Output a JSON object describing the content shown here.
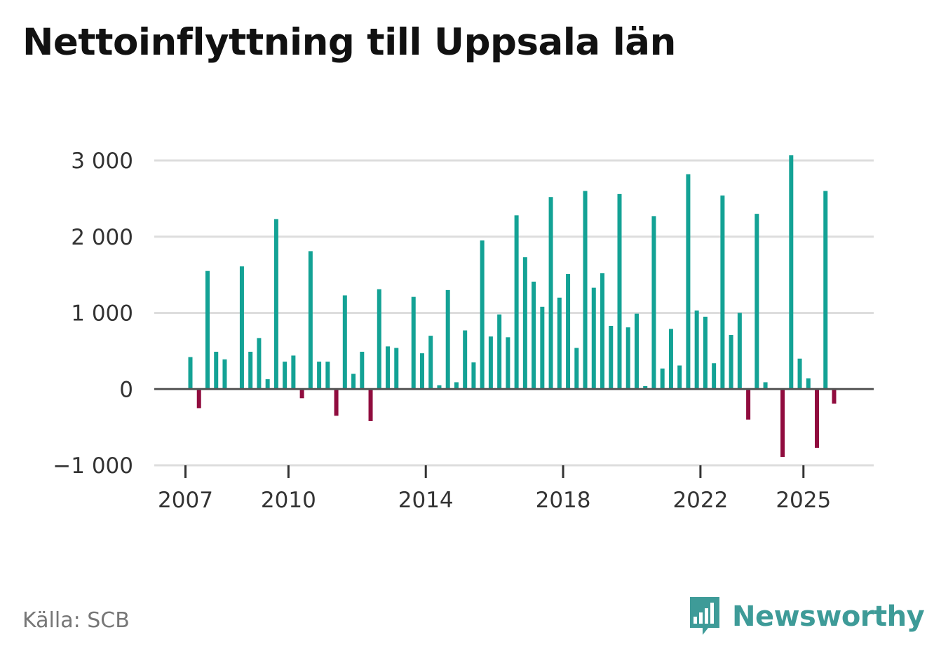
{
  "title": "Nettoinflyttning till Uppsala län",
  "source": "Källa: SCB",
  "brand": {
    "name": "Newsworthy",
    "color": "#3e9b98"
  },
  "colors": {
    "positive": "#13a295",
    "negative": "#900c3e",
    "grid": "#dddddd",
    "zero": "#555555"
  },
  "chart_data": {
    "type": "bar",
    "title": "Nettoinflyttning till Uppsala län",
    "xlabel": "",
    "ylabel": "",
    "ylim": [
      -1000,
      3000
    ],
    "yticks": [
      3000,
      2000,
      1000,
      0,
      -1000
    ],
    "ytick_labels": [
      "3 000",
      "2 000",
      "1 000",
      "0",
      "−1 000"
    ],
    "xtick_labels": [
      "2007",
      "2010",
      "2014",
      "2018",
      "2022",
      "2025"
    ],
    "xtick_index": [
      0,
      12,
      28,
      44,
      60,
      72
    ],
    "grid": true,
    "values": [
      420,
      -250,
      1550,
      490,
      390,
      0,
      1610,
      490,
      670,
      130,
      2230,
      360,
      440,
      -120,
      1810,
      360,
      360,
      -350,
      1230,
      200,
      490,
      -420,
      1310,
      560,
      540,
      0,
      1210,
      470,
      700,
      50,
      1300,
      90,
      770,
      350,
      1950,
      690,
      980,
      680,
      2280,
      1730,
      1410,
      1080,
      2520,
      1200,
      1510,
      540,
      2600,
      1330,
      1520,
      830,
      2560,
      810,
      990,
      40,
      2270,
      270,
      790,
      310,
      2820,
      1030,
      950,
      340,
      2540,
      710,
      1000,
      -400,
      2300,
      90,
      0,
      -890,
      3070,
      400,
      140,
      -770,
      2600,
      -190
    ]
  }
}
